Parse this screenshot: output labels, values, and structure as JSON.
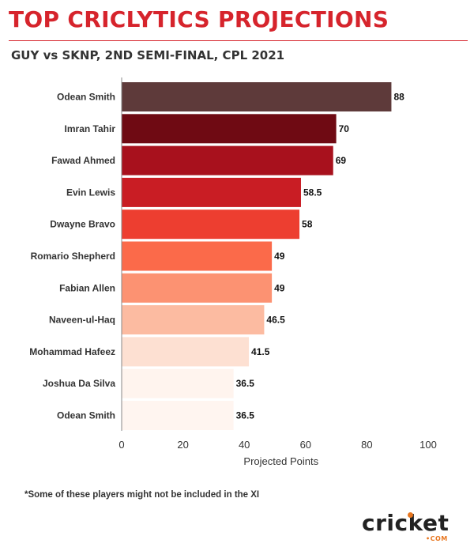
{
  "header": {
    "title": "TOP CRICLYTICS PROJECTIONS",
    "subtitle": "GUY vs SKNP, 2ND SEMI-FINAL, CPL 2021"
  },
  "chart_data": {
    "type": "bar",
    "orientation": "horizontal",
    "categories": [
      "Odean Smith",
      "Imran Tahir",
      "Fawad Ahmed",
      "Evin Lewis",
      "Dwayne Bravo",
      "Romario Shepherd",
      "Fabian Allen",
      "Naveen-ul-Haq",
      "Mohammad Hafeez",
      "Joshua Da Silva",
      "Odean Smith"
    ],
    "values": [
      88,
      70,
      69,
      58.5,
      58,
      49,
      49,
      46.5,
      41.5,
      36.5,
      36.5
    ],
    "value_labels": [
      "88",
      "70",
      "69",
      "58.5",
      "58",
      "49",
      "49",
      "46.5",
      "41.5",
      "36.5",
      "36.5"
    ],
    "bar_colors": [
      "#5e3a3a",
      "#6f0a13",
      "#a8111d",
      "#c91d24",
      "#ed3e30",
      "#fb6a4a",
      "#fc9272",
      "#fcbba1",
      "#fde0d2",
      "#fff4ee",
      "#fff5f0"
    ],
    "xlabel": "Projected Points",
    "ylabel": "",
    "xlim": [
      0,
      100
    ],
    "xticks": [
      0,
      20,
      40,
      60,
      80,
      100
    ],
    "grid": false
  },
  "footnote": "*Some of these players might not be included in the XI",
  "logo": {
    "word": "cricket",
    "sub": "•COM",
    "accent": "#e8761f"
  }
}
